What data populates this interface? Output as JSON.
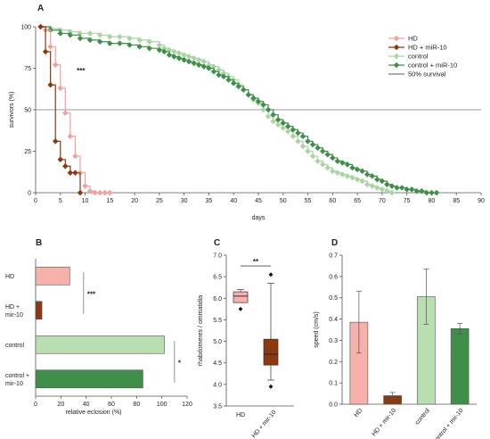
{
  "colors": {
    "hd": "#f4a09a",
    "hd_mir10": "#8b3a0f",
    "control": "#a8d5a0",
    "control_mir10": "#3f8f4a",
    "hd_fill": "#f7b0aa",
    "hd_mir10_fill": "#8b3a0f",
    "control_fill": "#b9dfb0",
    "control_mir10_fill": "#3f8f4a",
    "axis": "#555555",
    "gridline": "#7a7a7a"
  },
  "chart_data": [
    {
      "panel": "A",
      "type": "line",
      "xlabel": "days",
      "ylabel": "survivors (%)",
      "xlim": [
        0,
        90
      ],
      "ylim": [
        0,
        100
      ],
      "xticks": [
        0,
        5,
        10,
        15,
        20,
        25,
        30,
        35,
        40,
        45,
        50,
        55,
        60,
        65,
        70,
        75,
        80,
        85,
        90
      ],
      "yticks": [
        0,
        25,
        50,
        75,
        100
      ],
      "reference_line": {
        "label": "50% survival",
        "y": 50
      },
      "annotation": "***",
      "legend": "top-right",
      "series": [
        {
          "name": "HD",
          "color_key": "hd",
          "marker": "diamond",
          "points": [
            [
              1,
              100
            ],
            [
              2,
              98
            ],
            [
              3,
              88
            ],
            [
              4,
              77
            ],
            [
              5,
              63
            ],
            [
              6,
              48
            ],
            [
              7,
              34
            ],
            [
              8,
              22
            ],
            [
              9,
              12
            ],
            [
              10,
              4
            ],
            [
              11,
              1
            ],
            [
              12,
              0
            ],
            [
              13,
              0
            ],
            [
              14,
              0
            ],
            [
              15,
              0
            ]
          ]
        },
        {
          "name": "HD + miR-10",
          "color_key": "hd_mir10",
          "marker": "diamond",
          "points": [
            [
              1,
              100
            ],
            [
              2,
              85
            ],
            [
              3,
              65
            ],
            [
              4,
              31
            ],
            [
              5,
              20
            ],
            [
              6,
              16
            ],
            [
              7,
              12
            ],
            [
              8,
              12
            ],
            [
              9,
              0
            ]
          ]
        },
        {
          "name": "control",
          "color_key": "control",
          "marker": "diamond",
          "points": [
            [
              1,
              100
            ],
            [
              3,
              99
            ],
            [
              5,
              98
            ],
            [
              7,
              97
            ],
            [
              9,
              96
            ],
            [
              11,
              96
            ],
            [
              13,
              95
            ],
            [
              15,
              94
            ],
            [
              17,
              94
            ],
            [
              19,
              93
            ],
            [
              21,
              92
            ],
            [
              23,
              91
            ],
            [
              25,
              89
            ],
            [
              26,
              87
            ],
            [
              27,
              86
            ],
            [
              28,
              85
            ],
            [
              29,
              84
            ],
            [
              30,
              83
            ],
            [
              31,
              82
            ],
            [
              32,
              81
            ],
            [
              33,
              80
            ],
            [
              34,
              79
            ],
            [
              35,
              77
            ],
            [
              36,
              76
            ],
            [
              37,
              74
            ],
            [
              38,
              72
            ],
            [
              39,
              70
            ],
            [
              40,
              68
            ],
            [
              41,
              65
            ],
            [
              42,
              62
            ],
            [
              43,
              59
            ],
            [
              44,
              56
            ],
            [
              45,
              54
            ],
            [
              46,
              50
            ],
            [
              47,
              46
            ],
            [
              48,
              43
            ],
            [
              49,
              41
            ],
            [
              50,
              39
            ],
            [
              51,
              37
            ],
            [
              52,
              34
            ],
            [
              53,
              31
            ],
            [
              54,
              28
            ],
            [
              55,
              25
            ],
            [
              56,
              22
            ],
            [
              57,
              19
            ],
            [
              58,
              17
            ],
            [
              59,
              15
            ],
            [
              60,
              13
            ],
            [
              61,
              12
            ],
            [
              62,
              11
            ],
            [
              63,
              10
            ],
            [
              64,
              9
            ],
            [
              65,
              8
            ],
            [
              66,
              7
            ],
            [
              67,
              5
            ],
            [
              68,
              4
            ],
            [
              69,
              3
            ],
            [
              70,
              2
            ],
            [
              71,
              1
            ],
            [
              72,
              0
            ]
          ]
        },
        {
          "name": "control + miR-10",
          "color_key": "control_mir10",
          "marker": "diamond",
          "points": [
            [
              1,
              100
            ],
            [
              3,
              98
            ],
            [
              5,
              96
            ],
            [
              7,
              95
            ],
            [
              9,
              93
            ],
            [
              11,
              92
            ],
            [
              13,
              91
            ],
            [
              15,
              90
            ],
            [
              17,
              90
            ],
            [
              19,
              89
            ],
            [
              21,
              88
            ],
            [
              23,
              87
            ],
            [
              25,
              86
            ],
            [
              26,
              85
            ],
            [
              27,
              83
            ],
            [
              28,
              82
            ],
            [
              29,
              81
            ],
            [
              30,
              80
            ],
            [
              31,
              79
            ],
            [
              32,
              78
            ],
            [
              33,
              77
            ],
            [
              34,
              76
            ],
            [
              35,
              75
            ],
            [
              36,
              73
            ],
            [
              37,
              71
            ],
            [
              38,
              70
            ],
            [
              39,
              68
            ],
            [
              40,
              66
            ],
            [
              41,
              64
            ],
            [
              42,
              62
            ],
            [
              43,
              59
            ],
            [
              44,
              57
            ],
            [
              45,
              55
            ],
            [
              46,
              53
            ],
            [
              47,
              50
            ],
            [
              48,
              47
            ],
            [
              49,
              44
            ],
            [
              50,
              42
            ],
            [
              51,
              40
            ],
            [
              52,
              38
            ],
            [
              53,
              36
            ],
            [
              54,
              34
            ],
            [
              55,
              31
            ],
            [
              56,
              29
            ],
            [
              57,
              27
            ],
            [
              58,
              25
            ],
            [
              59,
              23
            ],
            [
              60,
              21
            ],
            [
              61,
              19
            ],
            [
              62,
              18
            ],
            [
              63,
              17
            ],
            [
              64,
              15
            ],
            [
              65,
              14
            ],
            [
              66,
              13
            ],
            [
              67,
              11
            ],
            [
              68,
              10
            ],
            [
              69,
              8
            ],
            [
              70,
              7
            ],
            [
              71,
              5
            ],
            [
              72,
              4
            ],
            [
              73,
              3
            ],
            [
              74,
              3
            ],
            [
              75,
              2
            ],
            [
              76,
              2
            ],
            [
              77,
              1
            ],
            [
              78,
              1
            ],
            [
              79,
              0
            ],
            [
              80,
              0
            ],
            [
              81,
              0
            ]
          ]
        },
        {
          "name": "50% survival",
          "color_key": "gridline",
          "marker": "none",
          "points": [
            [
              0,
              50
            ],
            [
              90,
              50
            ]
          ]
        }
      ]
    },
    {
      "panel": "B",
      "type": "bar",
      "orientation": "horizontal",
      "xlabel": "relative eclosion (%)",
      "xlim": [
        0,
        120
      ],
      "xticks": [
        0,
        20,
        40,
        60,
        80,
        100,
        120
      ],
      "categories": [
        [
          "HD"
        ],
        [
          "HD +",
          "mir-10"
        ],
        [
          "control"
        ],
        [
          "control +",
          "mir-10"
        ]
      ],
      "values": [
        27,
        5,
        102,
        85
      ],
      "fill_keys": [
        "hd_fill",
        "hd_mir10_fill",
        "control_fill",
        "control_mir10_fill"
      ],
      "annotations": [
        {
          "text": "***",
          "between": [
            0,
            1
          ]
        },
        {
          "text": "*",
          "between": [
            2,
            3
          ]
        }
      ]
    },
    {
      "panel": "C",
      "type": "box",
      "ylabel": "rhabdomeres / ommatidia",
      "ylim": [
        3.5,
        7.0
      ],
      "yticks": [
        3.5,
        4.0,
        4.5,
        5.0,
        5.5,
        6.0,
        6.5,
        7.0
      ],
      "categories": [
        "HD",
        "HD + mir-10"
      ],
      "boxes": [
        {
          "min": 5.9,
          "q1": 5.9,
          "median": 6.05,
          "q3": 6.15,
          "max": 6.2,
          "outliers": [
            5.75
          ],
          "fill_key": "hd_fill"
        },
        {
          "min": 4.1,
          "q1": 4.45,
          "median": 4.7,
          "q3": 5.05,
          "max": 6.35,
          "outliers": [
            6.55,
            3.95
          ],
          "fill_key": "hd_mir10_fill"
        }
      ],
      "annotation": "**"
    },
    {
      "panel": "D",
      "type": "bar",
      "ylabel": "speed (cm/s)",
      "ylim": [
        0,
        0.7
      ],
      "yticks": [
        0,
        0.1,
        0.2,
        0.3,
        0.4,
        0.5,
        0.6,
        0.7
      ],
      "categories": [
        "HD",
        "HD + mir-10",
        "control",
        "control + mir-10"
      ],
      "values": [
        0.385,
        0.04,
        0.505,
        0.355
      ],
      "errors": [
        0.145,
        0.015,
        0.13,
        0.025
      ],
      "fill_keys": [
        "hd_fill",
        "hd_mir10_fill",
        "control_fill",
        "control_mir10_fill"
      ]
    }
  ]
}
